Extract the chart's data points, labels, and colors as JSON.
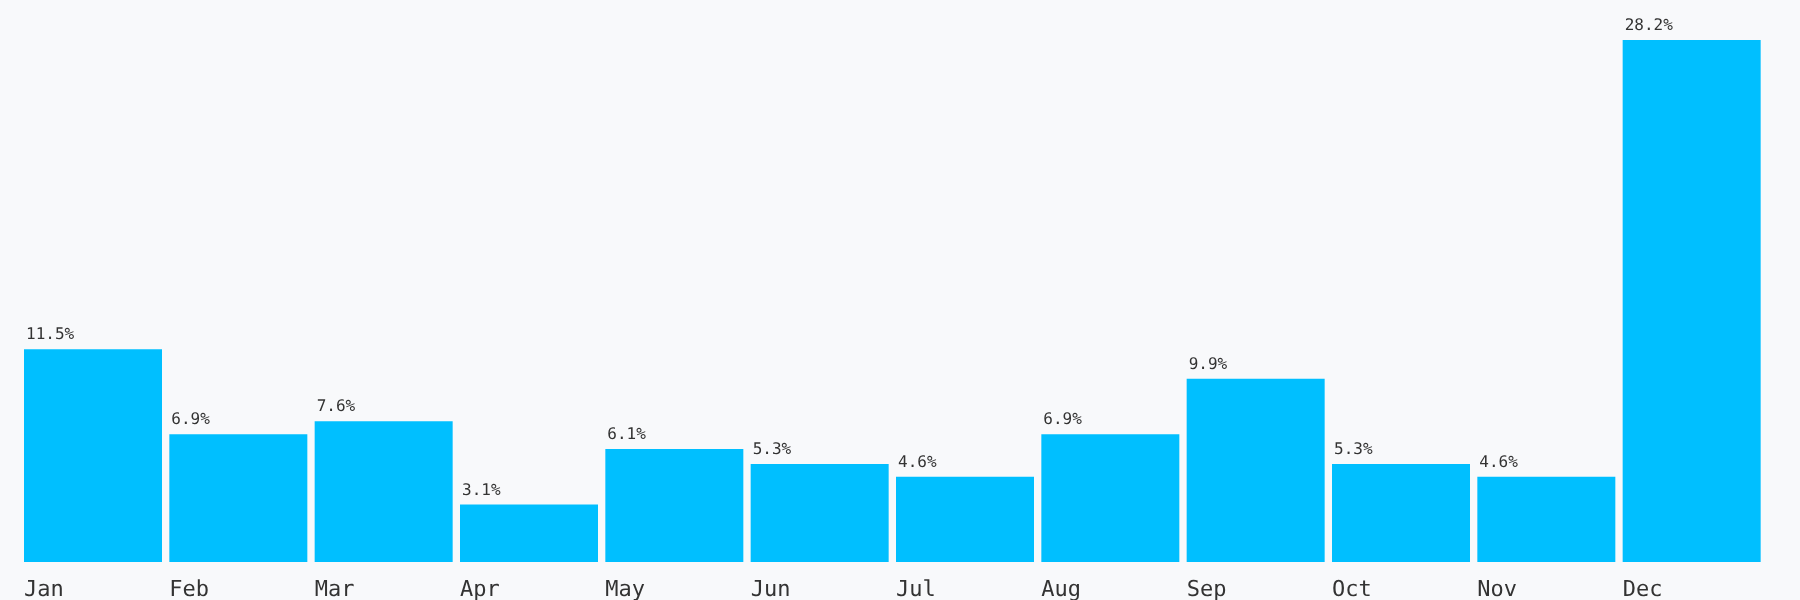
{
  "chart_data": {
    "type": "bar",
    "categories": [
      "Jan",
      "Feb",
      "Mar",
      "Apr",
      "May",
      "Jun",
      "Jul",
      "Aug",
      "Sep",
      "Oct",
      "Nov",
      "Dec"
    ],
    "values": [
      11.5,
      6.9,
      7.6,
      3.1,
      6.1,
      5.3,
      4.6,
      6.9,
      9.9,
      5.3,
      4.6,
      28.2
    ],
    "value_labels": [
      "11.5%",
      "6.9%",
      "7.6%",
      "3.1%",
      "6.1%",
      "5.3%",
      "4.6%",
      "6.9%",
      "9.9%",
      "5.3%",
      "4.6%",
      "28.2%"
    ],
    "color": "#00bfff",
    "grid": false,
    "legend": false,
    "tick_labels": "x"
  }
}
